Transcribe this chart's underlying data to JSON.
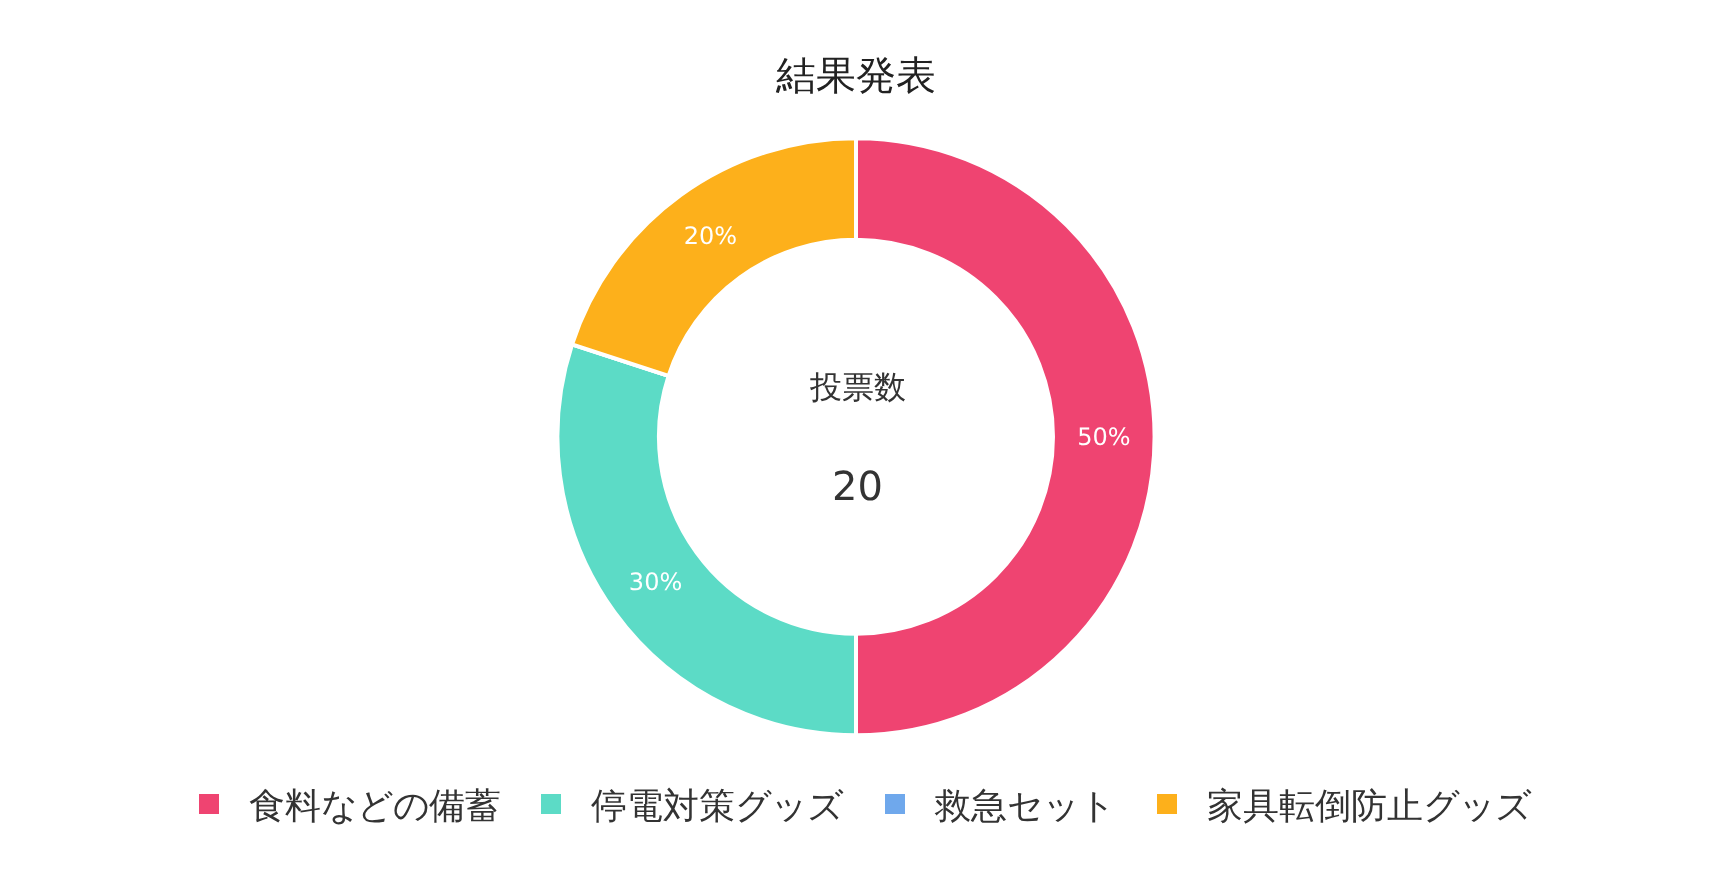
{
  "chart_data": {
    "type": "donut",
    "title": "結果発表",
    "categories": [
      "食料などの備蓄",
      "停電対策グッズ",
      "救急セット",
      "家具転倒防止グッズ"
    ],
    "values": [
      50,
      30,
      0,
      20
    ],
    "colors": [
      "#ef4471",
      "#5cdbc6",
      "#6fa8ec",
      "#fdb01b"
    ],
    "value_labels": [
      "50%",
      "30%",
      null,
      "20%"
    ],
    "annotations": [
      "投票数",
      "20"
    ],
    "legend": "bottom"
  }
}
